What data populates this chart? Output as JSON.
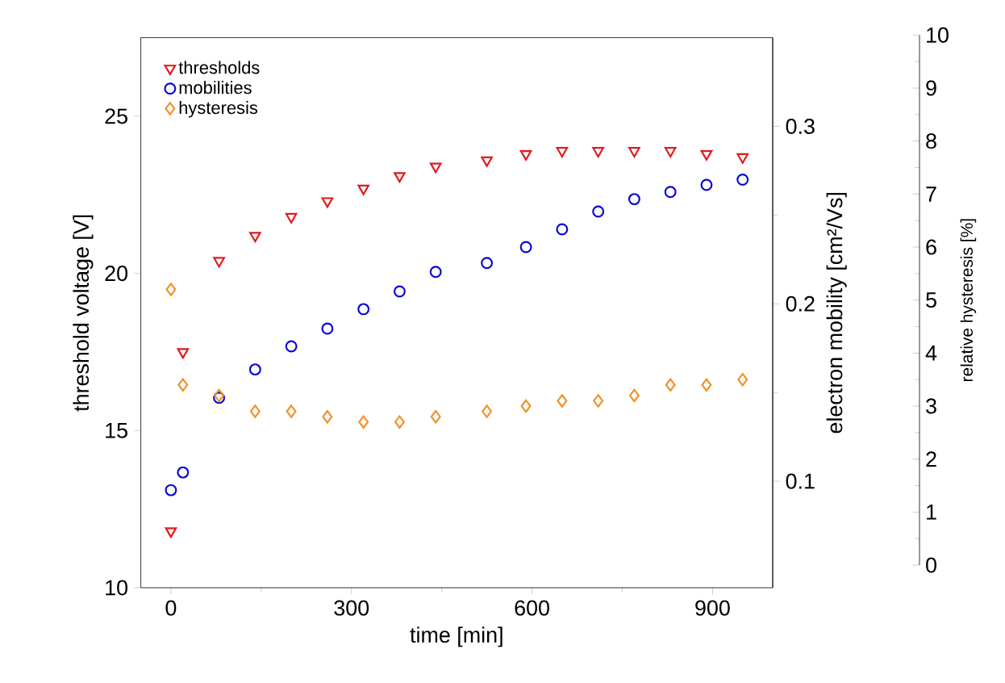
{
  "chart_data": {
    "type": "scatter",
    "xlabel": "time [min]",
    "ylabel": "threshold voltage [V]",
    "y2label": "electron mobility [cm²/Vs]",
    "y3label": "relative hysteresis [%]",
    "x": [
      0,
      20,
      80,
      140,
      200,
      260,
      320,
      380,
      440,
      525,
      590,
      650,
      710,
      770,
      830,
      890,
      950
    ],
    "xlim": [
      -50,
      1000
    ],
    "xticks": [
      0,
      300,
      600,
      900
    ],
    "ylim": [
      10,
      27.5
    ],
    "yticks": [
      10,
      15,
      20,
      25
    ],
    "y2lim": [
      0.04,
      0.35
    ],
    "y2ticks": [
      0.1,
      0.2,
      0.3
    ],
    "y3lim": [
      0,
      10
    ],
    "y3ticks": [
      0,
      1,
      2,
      3,
      4,
      5,
      6,
      7,
      8,
      9,
      10
    ],
    "legend": "top left",
    "series": [
      {
        "name": "thresholds",
        "color": "#e31a1c",
        "marker": "triangle",
        "values": [
          11.8,
          17.5,
          20.4,
          21.2,
          21.8,
          22.3,
          22.7,
          23.1,
          23.4,
          23.6,
          23.8,
          23.9,
          23.9,
          23.9,
          23.9,
          23.8,
          23.7
        ]
      },
      {
        "name": "mobilities",
        "color": "#0a0ad8",
        "marker": "circle",
        "axis": "y2",
        "values": [
          0.095,
          0.105,
          0.147,
          0.163,
          0.176,
          0.186,
          0.197,
          0.207,
          0.218,
          0.223,
          0.232,
          0.242,
          0.252,
          0.259,
          0.263,
          0.267,
          0.27
        ]
      },
      {
        "name": "hysteresis",
        "color": "#f0922b",
        "marker": "diamond",
        "axis": "y3",
        "values": [
          5.2,
          3.4,
          3.2,
          2.9,
          2.9,
          2.8,
          2.7,
          2.7,
          2.8,
          2.9,
          3.0,
          3.1,
          3.1,
          3.2,
          3.4,
          3.4,
          3.5
        ]
      }
    ]
  }
}
